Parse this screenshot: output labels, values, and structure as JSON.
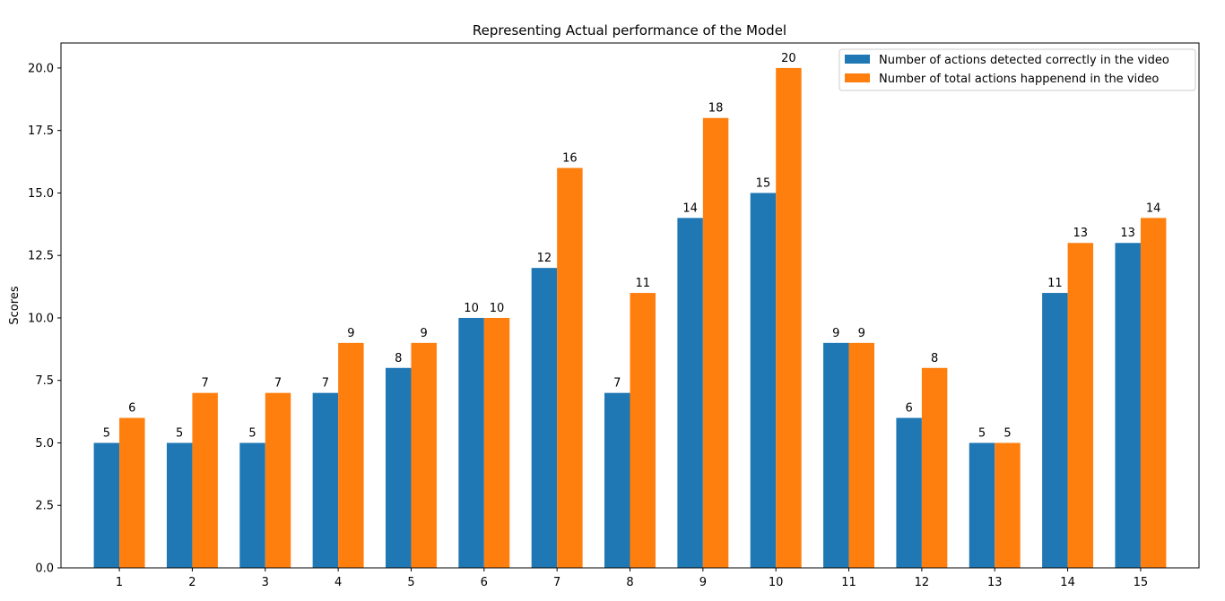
{
  "chart_data": {
    "type": "bar",
    "title": "Representing Actual performance of the Model",
    "xlabel": "",
    "ylabel": "Scores",
    "categories": [
      "1",
      "2",
      "3",
      "4",
      "5",
      "6",
      "7",
      "8",
      "9",
      "10",
      "11",
      "12",
      "13",
      "14",
      "15"
    ],
    "ylim": [
      0,
      21
    ],
    "yticks": [
      "0.0",
      "2.5",
      "5.0",
      "7.5",
      "10.0",
      "12.5",
      "15.0",
      "17.5",
      "20.0"
    ],
    "grid": false,
    "legend_position": "top-right",
    "series": [
      {
        "name": "Number of actions detected correctly in the video",
        "color": "#1f77b4",
        "values": [
          5,
          5,
          5,
          7,
          8,
          10,
          12,
          7,
          14,
          15,
          9,
          6,
          5,
          11,
          13
        ]
      },
      {
        "name": "Number of total actions happenend in the video",
        "color": "#ff7f0e",
        "values": [
          6,
          7,
          7,
          9,
          9,
          10,
          16,
          11,
          18,
          20,
          9,
          8,
          5,
          13,
          14
        ]
      }
    ]
  }
}
